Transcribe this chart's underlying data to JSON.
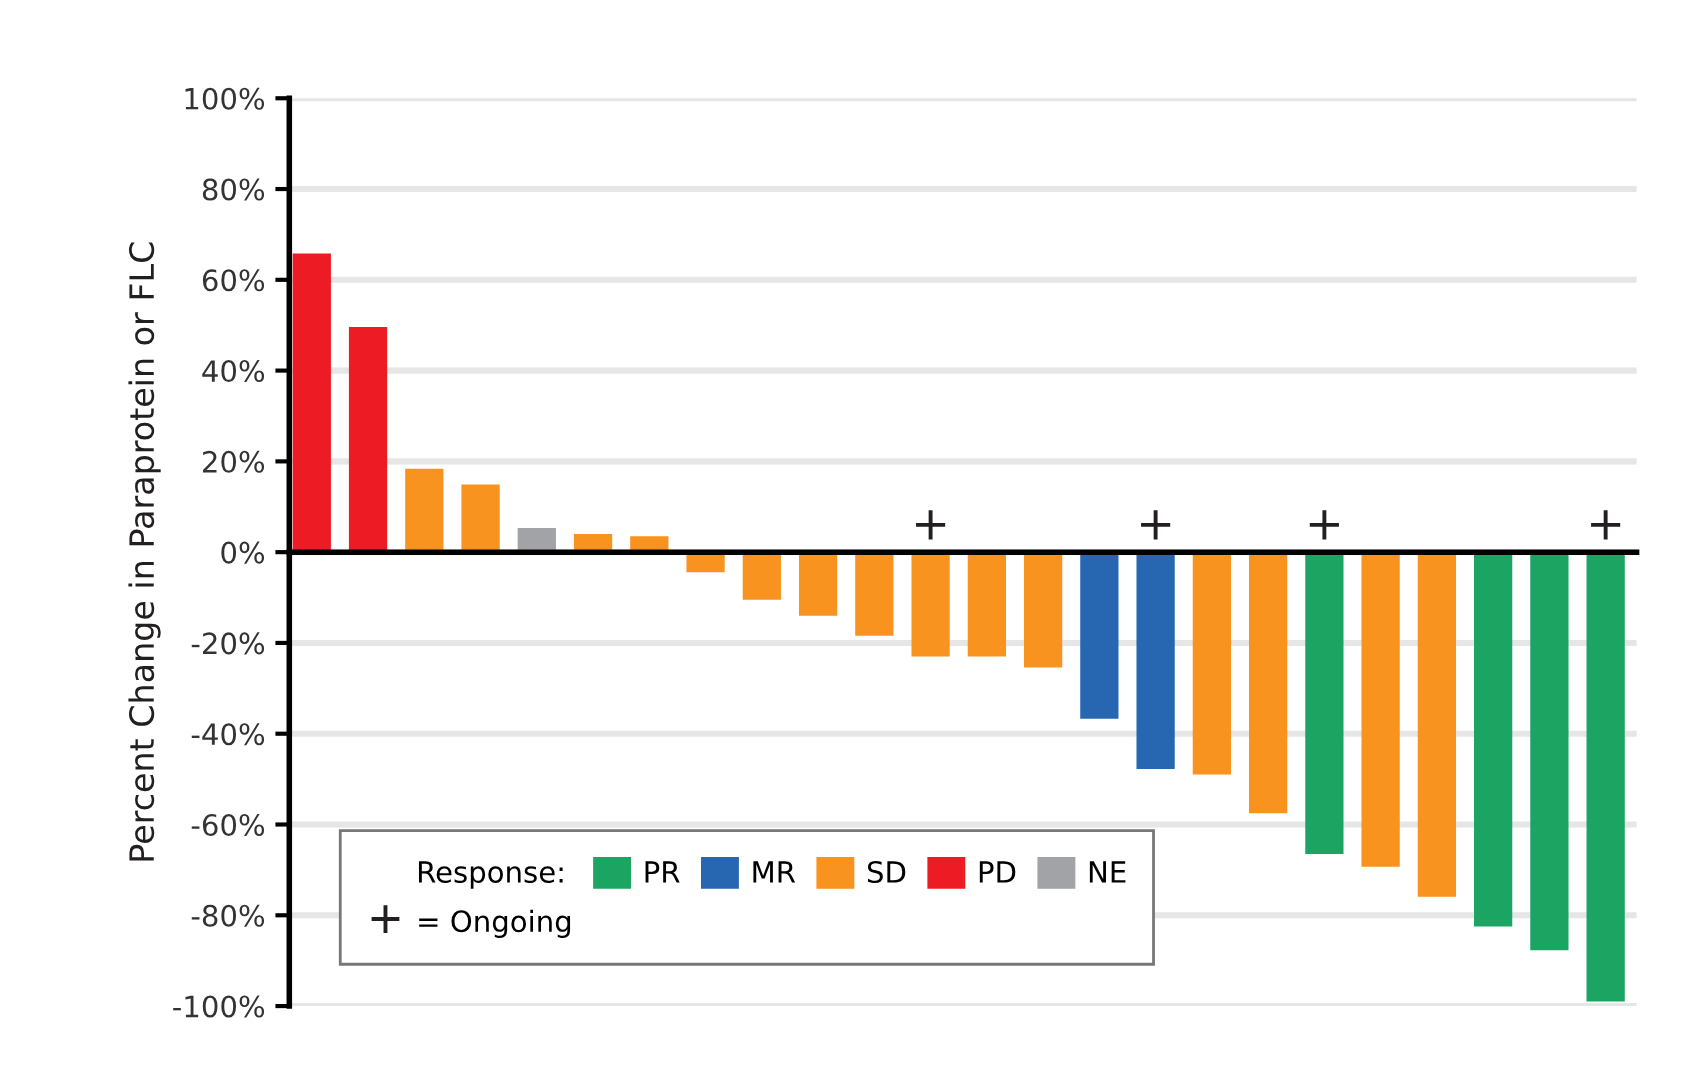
{
  "chart_data": {
    "type": "bar",
    "ylabel": "Percent Change in Paraprotein or FLC",
    "legend_title": "Response:",
    "legend": "bottom left",
    "grid": "y",
    "categories": [
      null,
      null,
      null,
      null,
      null,
      null,
      null,
      null,
      null,
      null,
      null,
      null,
      null,
      null,
      null,
      null,
      null,
      null,
      null,
      null,
      null,
      null,
      null,
      null
    ],
    "series": [
      {
        "name": "PR",
        "color": "#1ba462",
        "values": [
          null,
          null,
          null,
          null,
          null,
          null,
          null,
          null,
          null,
          null,
          null,
          null,
          null,
          null,
          null,
          null,
          null,
          null,
          -66.5,
          null,
          null,
          -82.5,
          -87.7,
          -99
        ]
      },
      {
        "name": "MR",
        "color": "#2767b1",
        "values": [
          null,
          null,
          null,
          null,
          null,
          null,
          null,
          null,
          null,
          null,
          null,
          null,
          null,
          null,
          -36.7,
          -47.8,
          null,
          null,
          null,
          null,
          null,
          null,
          null,
          null
        ]
      },
      {
        "name": "SD",
        "color": "#f7931e",
        "values": [
          null,
          null,
          18.4,
          14.9,
          null,
          4,
          3.5,
          -4.4,
          -10.5,
          -14,
          -18.4,
          -23,
          -23,
          -25.4,
          null,
          null,
          -49,
          -57.5,
          null,
          -69.3,
          -75.9,
          null,
          null,
          null
        ]
      },
      {
        "name": "PD",
        "color": "#ed1c24",
        "values": [
          65.8,
          49.6,
          null,
          null,
          null,
          null,
          null,
          null,
          null,
          null,
          null,
          null,
          null,
          null,
          null,
          null,
          null,
          null,
          null,
          null,
          null,
          null,
          null,
          null
        ]
      },
      {
        "name": "NE",
        "color": "#a1a3a6",
        "values": [
          null,
          null,
          null,
          null,
          5.3,
          null,
          null,
          null,
          null,
          null,
          null,
          null,
          null,
          null,
          null,
          null,
          null,
          null,
          null,
          null,
          null,
          null,
          null,
          null
        ]
      },
      {
        "name": "= Ongoing",
        "type": "scatter",
        "marker": "cross",
        "color": "#231f20",
        "values": [
          null,
          null,
          null,
          null,
          null,
          null,
          null,
          null,
          null,
          null,
          null,
          6,
          null,
          null,
          null,
          6,
          null,
          null,
          6,
          null,
          null,
          null,
          null,
          6
        ]
      }
    ],
    "ylim": [
      -100,
      100
    ],
    "yticks": [
      {
        "value": -100,
        "label": "-100%"
      },
      {
        "value": -80,
        "label": "-80%"
      },
      {
        "value": -60,
        "label": "-60%"
      },
      {
        "value": -40,
        "label": "-40%"
      },
      {
        "value": -20,
        "label": "-20%"
      },
      {
        "value": 0,
        "label": "0%"
      },
      {
        "value": 20,
        "label": "20%"
      },
      {
        "value": 40,
        "label": "40%"
      },
      {
        "value": 60,
        "label": "60%"
      },
      {
        "value": 80,
        "label": "80%"
      },
      {
        "value": 100,
        "label": "100%"
      }
    ]
  }
}
